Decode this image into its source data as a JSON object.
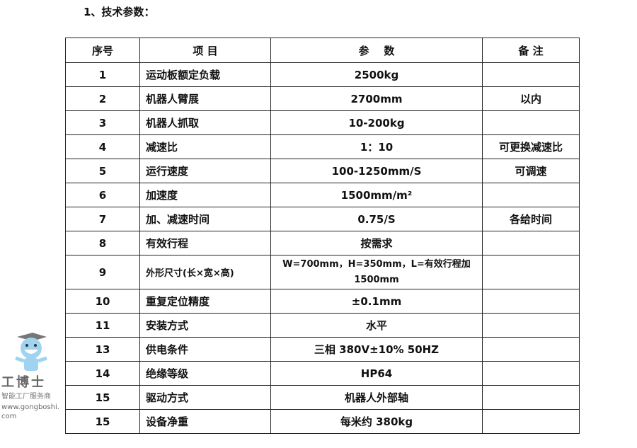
{
  "title": "1、技术参数：",
  "headers": [
    "序号",
    "项  目",
    "参    数",
    "备 注"
  ],
  "rows": [
    [
      "1",
      "运动板额定负载",
      "2500kg",
      ""
    ],
    [
      "2",
      "机器人臂展",
      "2700mm",
      "以内"
    ],
    [
      "3",
      "机器人抓取",
      "10-200kg",
      ""
    ],
    [
      "4",
      "减速比",
      "1：10",
      "可更换减速比"
    ],
    [
      "5",
      "运行速度",
      "100-1250mm/S",
      "可调速"
    ],
    [
      "6",
      "加速度",
      "1500mm/m²",
      ""
    ],
    [
      "7",
      "加、减速时间",
      "0.75/S",
      "各给时间"
    ],
    [
      "8",
      "有效行程",
      "按需求",
      ""
    ],
    [
      "9",
      "外形尺寸(长×宽×高)",
      "W=700mm，H=350mm，L=有效行程加 1500mm",
      ""
    ],
    [
      "10",
      "重复定位精度",
      "±0.1mm",
      ""
    ],
    [
      "11",
      "安装方式",
      "水平",
      ""
    ],
    [
      "13",
      "供电条件",
      "三相 380V±10%  50HZ",
      ""
    ],
    [
      "14",
      "绝缘等级",
      "HP64",
      ""
    ],
    [
      "15",
      "驱动方式",
      "机器人外部轴",
      ""
    ],
    [
      "15",
      "设备净重",
      "每米约 380kg",
      ""
    ]
  ],
  "watermark": {
    "name": "工博士",
    "tagline": "智能工厂服务商",
    "url": "www.gongboshi.com"
  }
}
